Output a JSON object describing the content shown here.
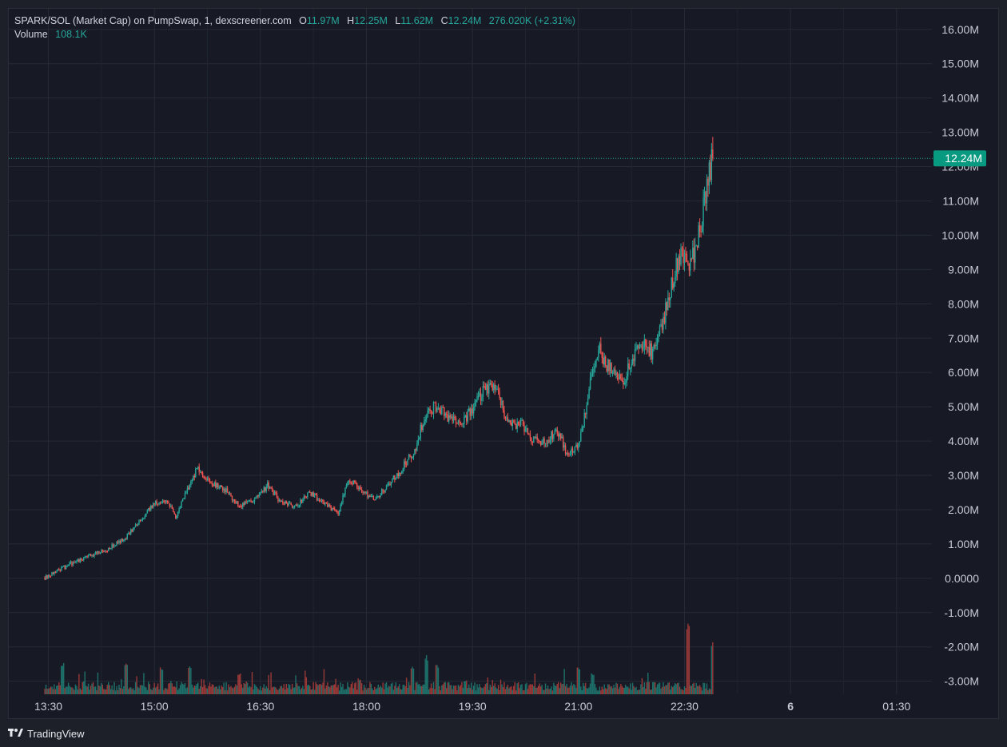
{
  "legend": {
    "title": "SPARK/SOL (Market Cap) on PumpSwap, 1, dexscreener.com",
    "o_label": "O",
    "o_value": "11.97M",
    "h_label": "H",
    "h_value": "12.25M",
    "l_label": "L",
    "l_value": "11.62M",
    "c_label": "C",
    "c_value": "12.24M",
    "change": "276.020K (+2.31%)",
    "volume_label": "Volume",
    "volume_value": "108.1K"
  },
  "last_price_label": "12.24M",
  "footer": {
    "brand": "TradingView"
  },
  "colors": {
    "up": "#26a69a",
    "down": "#ef5350",
    "background": "#171a25",
    "grid": "#252a36",
    "axis_text": "#c8cbd4",
    "price_tag": "#089981"
  },
  "chart_data": {
    "type": "candlestick",
    "y_ticks": [
      "16.00M",
      "15.00M",
      "14.00M",
      "13.00M",
      "12.00M",
      "11.00M",
      "10.00M",
      "9.00M",
      "8.00M",
      "7.00M",
      "6.00M",
      "5.00M",
      "4.00M",
      "3.00M",
      "2.00M",
      "1.00M",
      "0.0000",
      "-1.00M",
      "-2.00M",
      "-3.00M"
    ],
    "y_tick_values": [
      16,
      15,
      14,
      13,
      12,
      11,
      10,
      9,
      8,
      7,
      6,
      5,
      4,
      3,
      2,
      1,
      0,
      -1,
      -2,
      -3
    ],
    "y_unit": "M",
    "x_ticks": [
      "13:30",
      "15:00",
      "16:30",
      "18:00",
      "19:30",
      "21:00",
      "22:30",
      "6",
      "01:30"
    ],
    "x_tick_hours": [
      13.5,
      15,
      16.5,
      18,
      19.5,
      21,
      22.5,
      24,
      25.5
    ],
    "x_range_hours": [
      12.94,
      26.0
    ],
    "y_range": [
      -3.38,
      16.6
    ],
    "last_close": 12.24,
    "price_keyframes": [
      [
        13.45,
        0.02
      ],
      [
        13.7,
        0.3
      ],
      [
        14.0,
        0.6
      ],
      [
        14.3,
        0.8
      ],
      [
        14.6,
        1.2
      ],
      [
        14.8,
        1.7
      ],
      [
        15.0,
        2.2
      ],
      [
        15.2,
        2.2
      ],
      [
        15.3,
        1.8
      ],
      [
        15.45,
        2.5
      ],
      [
        15.6,
        3.2
      ],
      [
        15.8,
        2.8
      ],
      [
        16.0,
        2.6
      ],
      [
        16.2,
        2.1
      ],
      [
        16.4,
        2.3
      ],
      [
        16.6,
        2.7
      ],
      [
        16.8,
        2.2
      ],
      [
        17.0,
        2.1
      ],
      [
        17.2,
        2.5
      ],
      [
        17.4,
        2.2
      ],
      [
        17.6,
        1.9
      ],
      [
        17.75,
        2.9
      ],
      [
        17.9,
        2.6
      ],
      [
        18.1,
        2.3
      ],
      [
        18.3,
        2.7
      ],
      [
        18.5,
        3.2
      ],
      [
        18.7,
        3.8
      ],
      [
        18.8,
        4.6
      ],
      [
        18.95,
        5.0
      ],
      [
        19.1,
        4.8
      ],
      [
        19.3,
        4.5
      ],
      [
        19.5,
        4.9
      ],
      [
        19.7,
        5.6
      ],
      [
        19.85,
        5.4
      ],
      [
        20.0,
        4.5
      ],
      [
        20.2,
        4.5
      ],
      [
        20.35,
        4.0
      ],
      [
        20.55,
        4.0
      ],
      [
        20.7,
        4.3
      ],
      [
        20.85,
        3.6
      ],
      [
        21.0,
        3.9
      ],
      [
        21.05,
        4.3
      ],
      [
        21.15,
        5.5
      ],
      [
        21.3,
        7.0
      ],
      [
        21.35,
        6.3
      ],
      [
        21.5,
        6.0
      ],
      [
        21.65,
        5.8
      ],
      [
        21.8,
        6.6
      ],
      [
        21.95,
        6.9
      ],
      [
        22.05,
        6.5
      ],
      [
        22.2,
        7.5
      ],
      [
        22.32,
        8.6
      ],
      [
        22.45,
        9.5
      ],
      [
        22.55,
        9.2
      ],
      [
        22.65,
        9.6
      ],
      [
        22.75,
        10.5
      ],
      [
        22.85,
        11.9
      ],
      [
        22.9,
        12.24
      ]
    ],
    "volume_spikes": [
      [
        13.7,
        0.27
      ],
      [
        14.6,
        0.25
      ],
      [
        15.1,
        0.22
      ],
      [
        15.5,
        0.25
      ],
      [
        16.2,
        0.18
      ],
      [
        17.9,
        0.13
      ],
      [
        18.65,
        0.24
      ],
      [
        18.85,
        0.32
      ],
      [
        19.0,
        0.24
      ],
      [
        19.4,
        0.12
      ],
      [
        21.0,
        0.22
      ],
      [
        21.2,
        0.18
      ],
      [
        22.55,
        0.62
      ],
      [
        22.9,
        0.45
      ]
    ]
  }
}
